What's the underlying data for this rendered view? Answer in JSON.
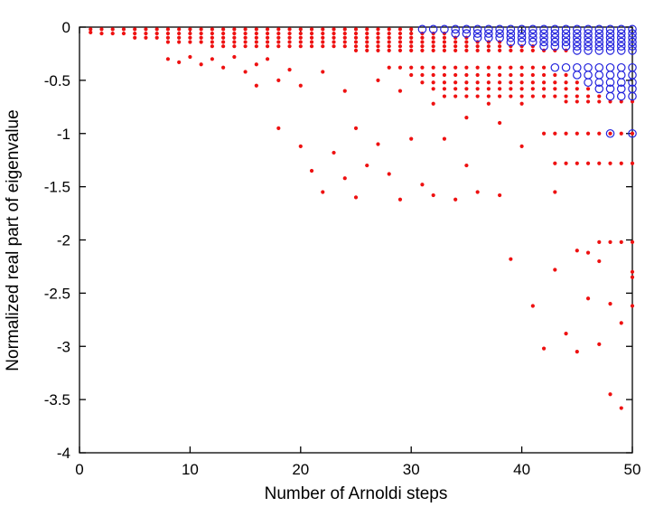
{
  "figure": {
    "background": "#ffffff"
  },
  "chart_data": {
    "type": "scatter",
    "title": "",
    "xlabel": "Number of Arnoldi steps",
    "ylabel": "Normalized real part of eigenvalue",
    "xlim": [
      0,
      50
    ],
    "ylim": [
      -4,
      0
    ],
    "x_ticks": [
      0,
      10,
      20,
      30,
      40,
      50
    ],
    "y_ticks": [
      0,
      -0.5,
      -1,
      -1.5,
      -2,
      -2.5,
      -3,
      -3.5,
      -4
    ],
    "grid": false,
    "legend": "none",
    "axis_color": "#000000",
    "series": [
      {
        "name": "ritz-values-red-dots",
        "marker": "dot",
        "color": "#ee1111",
        "bands": [
          {
            "y": -0.02,
            "x0": 1,
            "x1": 30
          },
          {
            "y": -0.06,
            "x0": 2,
            "x1": 33
          },
          {
            "y": -0.1,
            "x0": 5,
            "x1": 35
          },
          {
            "y": -0.14,
            "x0": 8,
            "x1": 38
          },
          {
            "y": -0.18,
            "x0": 12,
            "x1": 41
          },
          {
            "y": -0.22,
            "x0": 25,
            "x1": 44
          },
          {
            "y": -0.38,
            "x0": 28,
            "x1": 42
          },
          {
            "y": -0.45,
            "x0": 30,
            "x1": 44
          },
          {
            "y": -0.52,
            "x0": 31,
            "x1": 45
          },
          {
            "y": -0.58,
            "x0": 32,
            "x1": 46
          },
          {
            "y": -0.65,
            "x0": 33,
            "x1": 47
          },
          {
            "y": -0.7,
            "x0": 44,
            "x1": 50
          },
          {
            "y": -1.0,
            "x0": 42,
            "x1": 50
          },
          {
            "y": -1.28,
            "x0": 43,
            "x1": 50
          },
          {
            "y": -2.02,
            "x0": 47,
            "x1": 50
          }
        ],
        "points": [
          [
            1,
            -0.05
          ],
          [
            8,
            -0.3
          ],
          [
            9,
            -0.33
          ],
          [
            10,
            -0.28
          ],
          [
            11,
            -0.35
          ],
          [
            12,
            -0.3
          ],
          [
            13,
            -0.38
          ],
          [
            14,
            -0.28
          ],
          [
            15,
            -0.42
          ],
          [
            16,
            -0.35
          ],
          [
            16,
            -0.55
          ],
          [
            17,
            -0.3
          ],
          [
            18,
            -0.5
          ],
          [
            18,
            -0.95
          ],
          [
            19,
            -0.4
          ],
          [
            20,
            -0.55
          ],
          [
            20,
            -1.12
          ],
          [
            21,
            -1.35
          ],
          [
            22,
            -0.42
          ],
          [
            22,
            -1.55
          ],
          [
            23,
            -1.18
          ],
          [
            24,
            -0.6
          ],
          [
            24,
            -1.42
          ],
          [
            25,
            -0.95
          ],
          [
            25,
            -1.6
          ],
          [
            26,
            -1.3
          ],
          [
            27,
            -0.5
          ],
          [
            27,
            -1.1
          ],
          [
            28,
            -1.38
          ],
          [
            29,
            -0.6
          ],
          [
            29,
            -1.62
          ],
          [
            30,
            -1.05
          ],
          [
            31,
            -1.48
          ],
          [
            32,
            -0.72
          ],
          [
            32,
            -1.58
          ],
          [
            33,
            -1.05
          ],
          [
            34,
            -1.62
          ],
          [
            35,
            -0.85
          ],
          [
            35,
            -1.3
          ],
          [
            36,
            -1.55
          ],
          [
            37,
            -0.72
          ],
          [
            38,
            -0.9
          ],
          [
            38,
            -1.58
          ],
          [
            39,
            -2.18
          ],
          [
            40,
            -0.72
          ],
          [
            40,
            -1.12
          ],
          [
            41,
            -2.62
          ],
          [
            42,
            -3.02
          ],
          [
            43,
            -1.55
          ],
          [
            43,
            -2.28
          ],
          [
            44,
            -2.88
          ],
          [
            45,
            -2.1
          ],
          [
            45,
            -3.05
          ],
          [
            46,
            -2.12
          ],
          [
            46,
            -2.55
          ],
          [
            47,
            -2.2
          ],
          [
            47,
            -2.98
          ],
          [
            48,
            -2.6
          ],
          [
            48,
            -3.45
          ],
          [
            49,
            -2.78
          ],
          [
            49,
            -3.58
          ],
          [
            50,
            -2.3
          ],
          [
            50,
            -2.35
          ],
          [
            50,
            -2.62
          ]
        ]
      },
      {
        "name": "converged-blue-circles",
        "marker": "open-circle",
        "color": "#2222dd",
        "bands": [
          {
            "y": -0.02,
            "x0": 31,
            "x1": 50
          },
          {
            "y": -0.06,
            "x0": 34,
            "x1": 50
          },
          {
            "y": -0.1,
            "x0": 36,
            "x1": 50
          },
          {
            "y": -0.14,
            "x0": 39,
            "x1": 50
          },
          {
            "y": -0.18,
            "x0": 42,
            "x1": 50
          },
          {
            "y": -0.22,
            "x0": 45,
            "x1": 50
          },
          {
            "y": -0.38,
            "x0": 43,
            "x1": 50
          },
          {
            "y": -0.45,
            "x0": 45,
            "x1": 50
          },
          {
            "y": -0.52,
            "x0": 46,
            "x1": 50
          },
          {
            "y": -0.58,
            "x0": 47,
            "x1": 50
          },
          {
            "y": -0.65,
            "x0": 48,
            "x1": 50
          }
        ],
        "points": [
          [
            48,
            -1.0
          ],
          [
            50,
            -1.0
          ]
        ]
      }
    ]
  }
}
